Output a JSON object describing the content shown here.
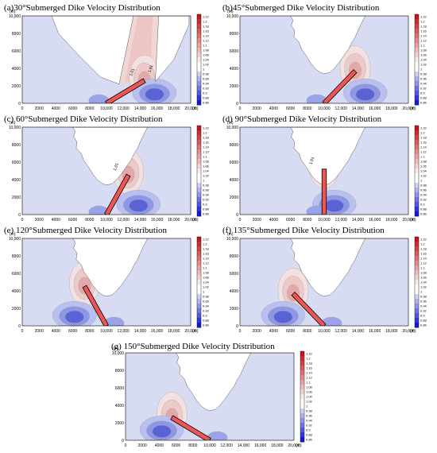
{
  "chart_data": [
    {
      "type": "heatmap",
      "title": "(a)30°Submerged Dike Velocity Distribution",
      "angle_deg": 30,
      "x_unit": "(m)",
      "y_unit": "(m)",
      "xlim": [
        0,
        20000
      ],
      "ylim": [
        0,
        10000
      ],
      "x_ticks": [
        "0",
        "2000",
        "4000",
        "6000",
        "8000",
        "10,000",
        "12,000",
        "14,000",
        "16,000",
        "18,000",
        "20,000"
      ],
      "y_ticks": [
        "0",
        "2000",
        "4000",
        "6000",
        "8000",
        "10,000"
      ],
      "colorbar_ticks": [
        "1.22",
        "1.2",
        "1.18",
        "1.16",
        "1.14",
        "1.12",
        "1.1",
        "1.08",
        "1.06",
        "1.04",
        "1.02",
        "1",
        "0.98",
        "0.96",
        "0.94",
        "0.92",
        "0.9",
        "0.88",
        "0.86"
      ],
      "contour_labels": [
        "1.01",
        "1.01"
      ]
    },
    {
      "type": "heatmap",
      "title": "(b)45°Submerged Dike Velocity Distribution",
      "angle_deg": 45,
      "x_unit": "(m)",
      "y_unit": "(m)",
      "xlim": [
        0,
        20000
      ],
      "ylim": [
        0,
        10000
      ],
      "x_ticks": [
        "0",
        "2000",
        "4000",
        "6000",
        "8000",
        "10,000",
        "12,000",
        "14,000",
        "16,000",
        "18,000",
        "20,000"
      ],
      "y_ticks": [
        "0",
        "2000",
        "4000",
        "6000",
        "8000",
        "10,000"
      ],
      "colorbar_ticks": [
        "1.22",
        "1.2",
        "1.18",
        "1.16",
        "1.14",
        "1.12",
        "1.1",
        "1.08",
        "1.06",
        "1.04",
        "1.02",
        "1",
        "0.98",
        "0.96",
        "0.94",
        "0.92",
        "0.9",
        "0.88",
        "0.86"
      ],
      "contour_labels": []
    },
    {
      "type": "heatmap",
      "title": "(c) 60°Submerged Dike Velocity Distribution",
      "angle_deg": 60,
      "x_unit": "(m)",
      "y_unit": "(m)",
      "xlim": [
        0,
        20000
      ],
      "ylim": [
        0,
        10000
      ],
      "x_ticks": [
        "0",
        "2000",
        "4000",
        "6000",
        "8000",
        "10,000",
        "12,000",
        "14,000",
        "16,000",
        "18,000",
        "20,000"
      ],
      "y_ticks": [
        "0",
        "2000",
        "4000",
        "6000",
        "8000",
        "10,000"
      ],
      "colorbar_ticks": [
        "1.22",
        "1.2",
        "1.18",
        "1.16",
        "1.14",
        "1.12",
        "1.1",
        "1.08",
        "1.06",
        "1.04",
        "1.02",
        "1",
        "0.98",
        "0.96",
        "0.94",
        "0.92",
        "0.9",
        "0.88",
        "0.86"
      ],
      "contour_labels": [
        "1.01"
      ]
    },
    {
      "type": "heatmap",
      "title": "(d) 90°Submerged Dike Velocity Distribution",
      "angle_deg": 90,
      "x_unit": "(m)",
      "y_unit": "(m)",
      "xlim": [
        0,
        20000
      ],
      "ylim": [
        0,
        10000
      ],
      "x_ticks": [
        "0",
        "2000",
        "4000",
        "6000",
        "8000",
        "10,000",
        "12,000",
        "14,000",
        "16,000",
        "18,000",
        "20,000"
      ],
      "y_ticks": [
        "0",
        "2000",
        "4000",
        "6000",
        "8000",
        "10,000"
      ],
      "colorbar_ticks": [
        "1.22",
        "1.2",
        "1.18",
        "1.16",
        "1.14",
        "1.12",
        "1.1",
        "1.08",
        "1.06",
        "1.04",
        "1.02",
        "1",
        "0.98",
        "0.96",
        "0.94",
        "0.92",
        "0.9",
        "0.88",
        "0.86"
      ],
      "contour_labels": [
        "1.01"
      ]
    },
    {
      "type": "heatmap",
      "title": "(e) 120°Submerged Dike Velocity Distribution",
      "angle_deg": 120,
      "x_unit": "(m)",
      "y_unit": "(m)",
      "xlim": [
        0,
        20000
      ],
      "ylim": [
        0,
        10000
      ],
      "x_ticks": [
        "0",
        "2000",
        "4000",
        "6000",
        "8000",
        "10,000",
        "12,000",
        "14,000",
        "16,000",
        "18,000",
        "20,000"
      ],
      "y_ticks": [
        "0",
        "2000",
        "4000",
        "6000",
        "8000",
        "10,000"
      ],
      "colorbar_ticks": [
        "1.22",
        "1.2",
        "1.18",
        "1.16",
        "1.14",
        "1.12",
        "1.1",
        "1.08",
        "1.06",
        "1.04",
        "1.02",
        "1",
        "0.98",
        "0.96",
        "0.94",
        "0.92",
        "0.9",
        "0.88",
        "0.86"
      ],
      "contour_labels": []
    },
    {
      "type": "heatmap",
      "title": "(f) 135°Submerged Dike Velocity Distribution",
      "angle_deg": 135,
      "x_unit": "(m)",
      "y_unit": "(m)",
      "xlim": [
        0,
        20000
      ],
      "ylim": [
        0,
        10000
      ],
      "x_ticks": [
        "0",
        "2000",
        "4000",
        "6000",
        "8000",
        "10,000",
        "12,000",
        "14,000",
        "16,000",
        "18,000",
        "20,000"
      ],
      "y_ticks": [
        "0",
        "2000",
        "4000",
        "6000",
        "8000",
        "10,000"
      ],
      "colorbar_ticks": [
        "1.22",
        "1.2",
        "1.18",
        "1.16",
        "1.14",
        "1.12",
        "1.1",
        "1.08",
        "1.06",
        "1.04",
        "1.02",
        "1",
        "0.98",
        "0.96",
        "0.94",
        "0.92",
        "0.9",
        "0.88",
        "0.86"
      ],
      "contour_labels": []
    },
    {
      "type": "heatmap",
      "title": "(g) 150°Submerged Dike Velocity Distribution",
      "angle_deg": 150,
      "x_unit": "(m)",
      "y_unit": "(m)",
      "xlim": [
        0,
        20000
      ],
      "ylim": [
        0,
        10000
      ],
      "x_ticks": [
        "0",
        "2000",
        "4000",
        "6000",
        "8000",
        "10,000",
        "12,000",
        "14,000",
        "16,000",
        "18,000",
        "20,000"
      ],
      "y_ticks": [
        "0",
        "2000",
        "4000",
        "6000",
        "8000",
        "10,000"
      ],
      "colorbar_ticks": [
        "1.22",
        "1.2",
        "1.18",
        "1.16",
        "1.14",
        "1.12",
        "1.1",
        "1.08",
        "1.06",
        "1.04",
        "1.02",
        "1",
        "0.98",
        "0.96",
        "0.94",
        "0.92",
        "0.9",
        "0.88",
        "0.86"
      ],
      "contour_labels": []
    }
  ],
  "colors": {
    "background_flow": "#d7dcf3",
    "land": "#ffffff",
    "high_speed": "#e8a3a3",
    "very_high": "#cc2222",
    "low_speed": "#5f6ad6",
    "very_low": "#1a1fd0",
    "dike_fill": "#ee5555",
    "dike_edge": "#000000"
  }
}
